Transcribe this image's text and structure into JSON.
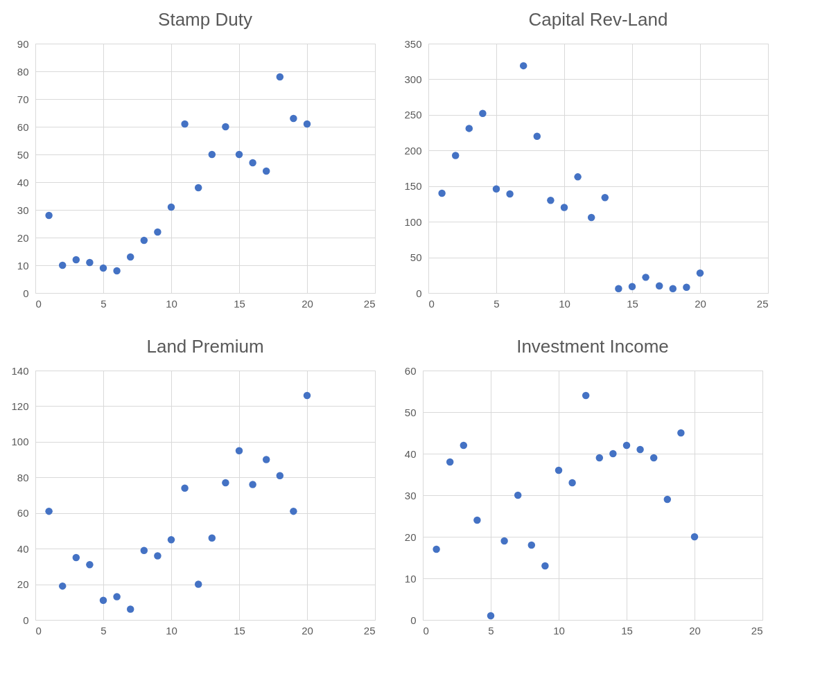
{
  "chart_data": [
    {
      "type": "scatter",
      "title": "Stamp Duty",
      "x": [
        1,
        2,
        3,
        4,
        5,
        6,
        7,
        8,
        9,
        10,
        11,
        12,
        13,
        14,
        15,
        16,
        17,
        18,
        19,
        20
      ],
      "series": [
        {
          "color": "#4472c4",
          "values": [
            28,
            10,
            12,
            11,
            9,
            8,
            13,
            19,
            22,
            31,
            61,
            38,
            50,
            60,
            50,
            47,
            44,
            78,
            63,
            61
          ]
        }
      ],
      "xlim": [
        0,
        25
      ],
      "xticks": [
        0,
        5,
        10,
        15,
        20,
        25
      ],
      "ylim": [
        0,
        90
      ],
      "yticks": [
        0,
        10,
        20,
        30,
        40,
        50,
        60,
        70,
        80,
        90
      ],
      "grid": true,
      "marker": "circle"
    },
    {
      "type": "scatter",
      "title": "Capital Rev-Land",
      "x": [
        1,
        2,
        3,
        4,
        5,
        6,
        7,
        8,
        9,
        10,
        11,
        12,
        13,
        14,
        15,
        16,
        17,
        18,
        19,
        20
      ],
      "series": [
        {
          "color": "#4472c4",
          "values": [
            140,
            193,
            231,
            252,
            146,
            139,
            319,
            220,
            130,
            120,
            163,
            106,
            134,
            6,
            9,
            22,
            10,
            6,
            8,
            28
          ]
        }
      ],
      "xlim": [
        0,
        25
      ],
      "xticks": [
        0,
        5,
        10,
        15,
        20,
        25
      ],
      "ylim": [
        0,
        350
      ],
      "yticks": [
        0,
        50,
        100,
        150,
        200,
        250,
        300,
        350
      ],
      "grid": true,
      "marker": "circle"
    },
    {
      "type": "scatter",
      "title": "Land Premium",
      "x": [
        1,
        2,
        3,
        4,
        5,
        6,
        7,
        8,
        9,
        10,
        11,
        12,
        13,
        14,
        15,
        16,
        17,
        18,
        19,
        20
      ],
      "series": [
        {
          "color": "#4472c4",
          "values": [
            61,
            19,
            35,
            31,
            11,
            13,
            6,
            39,
            36,
            45,
            74,
            20,
            46,
            77,
            95,
            76,
            90,
            81,
            61,
            126
          ]
        }
      ],
      "xlim": [
        0,
        25
      ],
      "xticks": [
        0,
        5,
        10,
        15,
        20,
        25
      ],
      "ylim": [
        0,
        140
      ],
      "yticks": [
        0,
        20,
        40,
        60,
        80,
        100,
        120,
        140
      ],
      "grid": true,
      "marker": "circle"
    },
    {
      "type": "scatter",
      "title": "Investment Income",
      "x": [
        1,
        2,
        3,
        4,
        5,
        6,
        7,
        8,
        9,
        10,
        11,
        12,
        13,
        14,
        15,
        16,
        17,
        18,
        19,
        20
      ],
      "series": [
        {
          "color": "#4472c4",
          "values": [
            17,
            38,
            42,
            24,
            1,
            19,
            30,
            18,
            13,
            36,
            33,
            54,
            39,
            40,
            42,
            41,
            39,
            29,
            45,
            20
          ]
        }
      ],
      "xlim": [
        0,
        25
      ],
      "xticks": [
        0,
        5,
        10,
        15,
        20,
        25
      ],
      "ylim": [
        0,
        60
      ],
      "yticks": [
        0,
        10,
        20,
        30,
        40,
        50,
        60
      ],
      "grid": true,
      "marker": "circle"
    }
  ]
}
